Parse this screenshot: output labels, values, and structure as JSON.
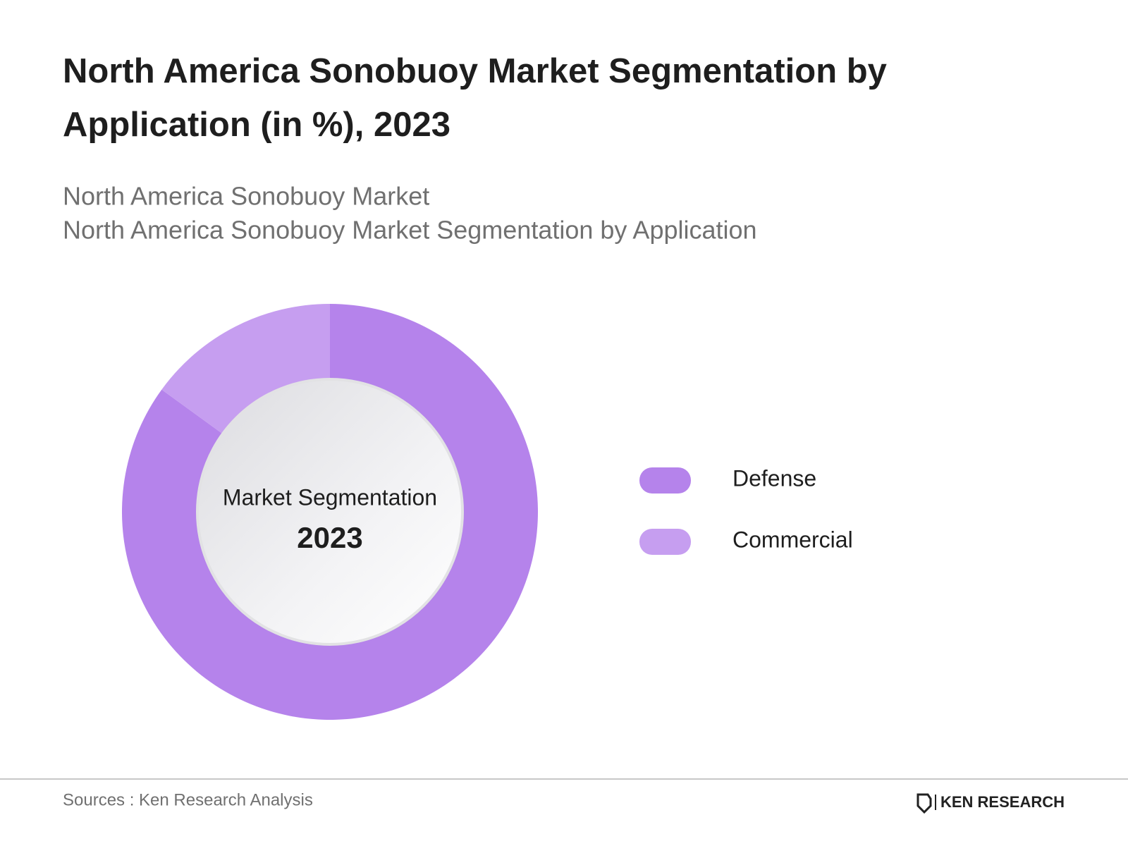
{
  "chart_data": {
    "type": "donut",
    "title": "North America Sonobuoy Market Segmentation by Application (in %), 2023",
    "subtitle": [
      "North America Sonobuoy Market",
      "North America Sonobuoy Market Segmentation by Application"
    ],
    "center_label": "Market Segmentation",
    "center_year": "2023",
    "categories": [
      "Defense",
      "Commercial"
    ],
    "values": [
      85,
      15
    ],
    "colors": [
      "#b583eb",
      "#c69ef0"
    ],
    "legend": "right",
    "source": "Sources : Ken Research Analysis",
    "logo": "KEN RESEARCH"
  }
}
